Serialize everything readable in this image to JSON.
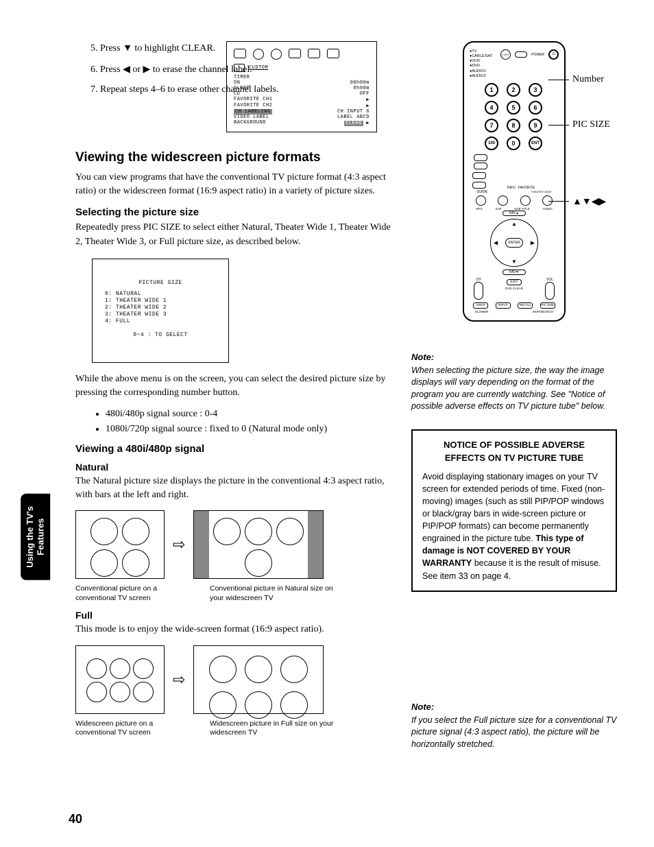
{
  "steps": {
    "s5_a": "Press ",
    "s5_b": " to highlight CLEAR.",
    "s6_a": "Press ",
    "s6_or": " or ",
    "s6_b": " to erase the channel label.",
    "s7": "Repeat steps 4–6 to erase other channel labels."
  },
  "osd": {
    "custom": "CUSTOM",
    "rows": [
      [
        "TIMER",
        ""
      ],
      [
        "  ON",
        "00h00m"
      ],
      [
        "  SLEEP",
        "0h00m"
      ],
      [
        "CD",
        "OFF"
      ],
      [
        "FAVORITE CH1",
        "▶"
      ],
      [
        "FAVORITE CH2",
        "▶"
      ],
      [
        "CH LABELING",
        "CH INPUT        6"
      ],
      [
        "VIDEO LABEL",
        "LABEL     ABCD"
      ],
      [
        "BACKGROUND",
        "CLEAR        ▶"
      ]
    ],
    "highlight_row": 6,
    "clear_row": 8
  },
  "section_heading": "Viewing the widescreen picture formats",
  "section_intro": "You can view programs that have the conventional TV picture format (4:3 aspect ratio) or the widescreen format (16:9 aspect ratio) in a variety of picture sizes.",
  "sub_selecting": "Selecting the picture size",
  "selecting_body": "Repeatedly press PIC SIZE to select either Natural, Theater Wide 1, Theater Wide 2, Theater Wide 3, or Full picture size, as described below.",
  "picsize_menu": {
    "title": "PICTURE  SIZE",
    "lines": [
      "0: NATURAL",
      "1: THEATER  WIDE    1",
      "2: THEATER  WIDE    2",
      "3: THEATER  WIDE    3",
      "4: FULL"
    ],
    "select": "0~4 : TO  SELECT"
  },
  "while_text": "While the above menu is on the screen, you can select the desired picture size by pressing the corresponding number button.",
  "bullets": [
    "480i/480p signal source    : 0-4",
    "1080i/720p signal source  : fixed to 0 (Natural mode only)"
  ],
  "sub_viewing": "Viewing a 480i/480p signal",
  "mode_natural": "Natural",
  "natural_body": "The Natural picture size displays the picture in the conventional 4:3 aspect ratio, with bars at the left and right.",
  "cap_nat_left": "Conventional picture on a conventional TV screen",
  "cap_nat_right": "Conventional picture in Natural size on your widescreen TV",
  "mode_full": "Full",
  "full_body": "This mode is to enjoy the wide-screen format (16:9 aspect ratio).",
  "cap_full_left": "Widescreen picture on a conventional TV screen",
  "cap_full_right": "Widescreen picture in Full size on your widescreen TV",
  "remote": {
    "modes": [
      "●TV",
      "●CABLE/SAT",
      "●VCR",
      "●DVD",
      "●AUDIO1",
      "●AUDIO2"
    ],
    "power": "POWER",
    "light_label": "LIGHT",
    "mode_btn": "MODE",
    "tvvcr_btn": "TV/VCR",
    "action_btn": "ACTION",
    "menu_btn": "MENU",
    "info_label": "INFO",
    "guide_label": "GUIDE",
    "favorite_label": "FAVORITE",
    "mts_label": "MTS",
    "sap_label": "SAP",
    "subtitle_label": "SUB TITLE",
    "audio_label": "AUDIO",
    "theater_label": "THEATER WIDE",
    "fav_up": "FAV▲",
    "fav_dn": "FAV▼",
    "enter": "ENTER",
    "ch": "CH",
    "vol": "VOL",
    "exit": "EXIT",
    "dvdclear": "DVD CLEAR",
    "bottom_btns": [
      "SWAP",
      "INPUT",
      "RECALL",
      "PIC SIZE"
    ],
    "slower": "SLOWER",
    "skipsearch": "SKIP/SEARCH",
    "numbers": [
      "1",
      "2",
      "3",
      "4",
      "5",
      "6",
      "7",
      "8",
      "9",
      "100",
      "0",
      "ENT"
    ],
    "callout_number": "Number",
    "callout_picsize": "PIC SIZE",
    "callout_arrows": "▲▼◀▶"
  },
  "note1_hdr": "Note:",
  "note1_body": "When selecting the picture size, the way the image displays will vary depending on the format of the program you are currently watching. See \"Notice of possible adverse effects on TV picture tube\" below.",
  "notice_title": "NOTICE OF POSSIBLE ADVERSE EFFECTS ON TV PICTURE TUBE",
  "notice_body_a": "Avoid displaying stationary images on your TV screen for extended periods of time. Fixed (non-moving) images (such as still PIP/POP windows or black/gray bars in wide-screen picture or PIP/POP formats) can become permanently engrained in the picture tube. ",
  "notice_body_bold": "This type of damage is NOT COVERED BY YOUR WARRANTY",
  "notice_body_b": " because it is the result of misuse. See item 33 on page 4.",
  "note2_hdr": "Note:",
  "note2_body": "If you select the Full picture size for a conventional TV picture signal (4:3 aspect ratio), the picture will be horizontally stretched.",
  "side_tab": "Using the TV's\nFeatures",
  "page_number": "40"
}
